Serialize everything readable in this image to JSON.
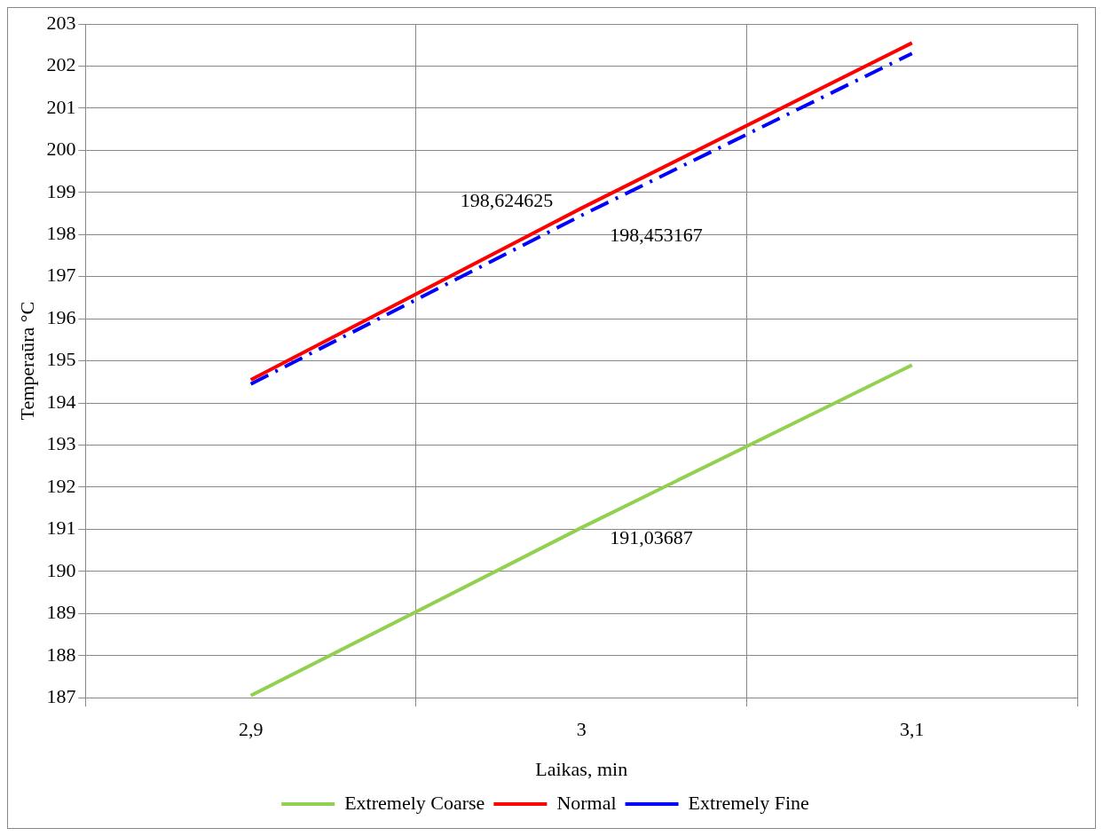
{
  "chart_data": {
    "type": "line",
    "xlabel": "Laikas, min",
    "ylabel": "Temperaūra °C",
    "categories": [
      "2,9",
      "3",
      "3,1"
    ],
    "ylim": [
      187,
      203
    ],
    "yticks": [
      187,
      188,
      189,
      190,
      191,
      192,
      193,
      194,
      195,
      196,
      197,
      198,
      199,
      200,
      201,
      202,
      203
    ],
    "grid": true,
    "legend": "bottom",
    "series": [
      {
        "name": "Extremely Coarse",
        "color": "#92d050",
        "values": [
          187.05,
          191.03687,
          194.9
        ],
        "value_labels": [
          null,
          "191,03687",
          null
        ],
        "line_style": "solid"
      },
      {
        "name": "Normal",
        "color": "#ff0000",
        "values": [
          194.55,
          198.624625,
          202.55
        ],
        "value_labels": [
          null,
          "198,624625",
          null
        ],
        "line_style": "solid"
      },
      {
        "name": "Extremely Fine",
        "color": "#0000ff",
        "values": [
          194.45,
          198.453167,
          202.3
        ],
        "value_labels": [
          null,
          "198,453167",
          null
        ],
        "line_style": "dashed"
      }
    ]
  }
}
